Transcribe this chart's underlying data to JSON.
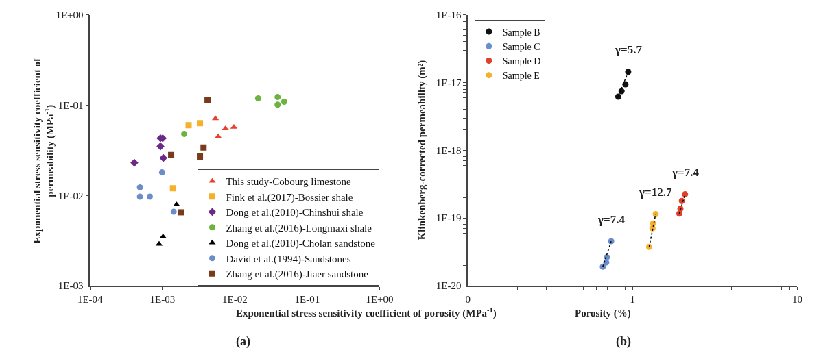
{
  "chart_data": [
    {
      "type": "scatter",
      "title": "(a)",
      "xlabel": "Exponential stress sensitivity coefficient of porosity (MPa$^{-1}$)",
      "ylabel": "Exponential stress sensitivity coefficient of permeability (MPa$^{-1}$)",
      "log": "xy",
      "legend": "bottom right",
      "xlim": [
        0.0001,
        1
      ],
      "xticks": [
        {
          "value": 0.0001,
          "label": "1E-04"
        },
        {
          "value": 0.001,
          "label": "1E-03"
        },
        {
          "value": 0.01,
          "label": "1E-02"
        },
        {
          "value": 0.1,
          "label": "1E-01"
        },
        {
          "value": 1,
          "label": "1E+00"
        }
      ],
      "ylim": [
        0.001,
        1
      ],
      "yticks": [
        {
          "value": 0.001,
          "label": "1E-03"
        },
        {
          "value": 0.01,
          "label": "1E-02"
        },
        {
          "value": 0.1,
          "label": "1E-01"
        },
        {
          "value": 1,
          "label": "1E+00"
        }
      ],
      "series": [
        {
          "name": "This study-Cobourg limestone",
          "color": "#e8402a",
          "marker": "triangle",
          "x": [
            0.0054,
            0.0074,
            0.0097,
            0.0059
          ],
          "values": [
            0.071,
            0.055,
            0.057,
            0.045
          ]
        },
        {
          "name": "Fink et al.(2017)-Bossier shale",
          "color": "#f5b12b",
          "marker": "square",
          "x": [
            0.0023,
            0.0033,
            0.0014
          ],
          "values": [
            0.06,
            0.063,
            0.012
          ]
        },
        {
          "name": "Dong et al.(2010)-Chinshui shale",
          "color": "#6a2a86",
          "marker": "diamond",
          "x": [
            0.00094,
            0.00101,
            0.00094,
            0.00103,
            0.00041
          ],
          "values": [
            0.043,
            0.043,
            0.035,
            0.026,
            0.023
          ]
        },
        {
          "name": "Zhang et al.(2016)-Longmaxi shale",
          "color": "#6db33f",
          "marker": "circle",
          "x": [
            0.021,
            0.039,
            0.048,
            0.039,
            0.002
          ],
          "values": [
            0.119,
            0.123,
            0.109,
            0.101,
            0.048
          ]
        },
        {
          "name": "Dong et al.(2010)-Cholan sandstone",
          "color": "#000000",
          "marker": "triangle",
          "x": [
            0.00157,
            0.00102,
            0.0009
          ],
          "values": [
            0.0079,
            0.0035,
            0.0029
          ]
        },
        {
          "name": "David et al.(1994)-Sandstones",
          "color": "#6a8fc8",
          "marker": "circle",
          "x": [
            0.00099,
            0.00049,
            0.00049,
            0.00067,
            0.00143
          ],
          "values": [
            0.018,
            0.0123,
            0.0097,
            0.0097,
            0.0066
          ]
        },
        {
          "name": "Zhang et al.(2016)-Jiaer sandstone",
          "color": "#7a3a1c",
          "marker": "square",
          "x": [
            0.0042,
            0.0037,
            0.0033,
            0.00132,
            0.00179
          ],
          "values": [
            0.113,
            0.034,
            0.027,
            0.028,
            0.0065
          ]
        }
      ]
    },
    {
      "type": "scatter",
      "title": "(b)",
      "xlabel": "Porosity (%)",
      "ylabel": "Klinkenberg-corrected permeability (m²)",
      "log": "xy",
      "legend": "top left",
      "xlim": [
        0.1,
        10
      ],
      "xticks": [
        {
          "value": 0.1,
          "label": "0"
        },
        {
          "value": 0.2,
          "label": null
        },
        {
          "value": 0.3,
          "label": null
        },
        {
          "value": 0.4,
          "label": null
        },
        {
          "value": 0.5,
          "label": null
        },
        {
          "value": 0.6,
          "label": null
        },
        {
          "value": 0.7,
          "label": null
        },
        {
          "value": 0.8,
          "label": null
        },
        {
          "value": 0.9,
          "label": null
        },
        1,
        {
          "value": 2,
          "label": null
        },
        {
          "value": 3,
          "label": null
        },
        {
          "value": 4,
          "label": null
        },
        {
          "value": 5,
          "label": null
        },
        {
          "value": 6,
          "label": null
        },
        {
          "value": 7,
          "label": null
        },
        {
          "value": 8,
          "label": null
        },
        {
          "value": 9,
          "label": null
        },
        10
      ],
      "ylim": [
        1e-20,
        1e-16
      ],
      "yticks": [
        {
          "value": 1e-20,
          "label": "1E-20"
        },
        {
          "value": 2e-20,
          "label": null
        },
        {
          "value": 3e-20,
          "label": null
        },
        {
          "value": 4e-20,
          "label": null
        },
        {
          "value": 5e-20,
          "label": null
        },
        {
          "value": 6e-20,
          "label": null
        },
        {
          "value": 7e-20,
          "label": null
        },
        {
          "value": 8e-20,
          "label": null
        },
        {
          "value": 9e-20,
          "label": null
        },
        {
          "value": 1e-19,
          "label": "1E-19"
        },
        {
          "value": 2e-19,
          "label": null
        },
        {
          "value": 3e-19,
          "label": null
        },
        {
          "value": 4e-19,
          "label": null
        },
        {
          "value": 5e-19,
          "label": null
        },
        {
          "value": 6e-19,
          "label": null
        },
        {
          "value": 7e-19,
          "label": null
        },
        {
          "value": 8e-19,
          "label": null
        },
        {
          "value": 9e-19,
          "label": null
        },
        {
          "value": 1e-18,
          "label": "1E-18"
        },
        {
          "value": 2e-18,
          "label": null
        },
        {
          "value": 3e-18,
          "label": null
        },
        {
          "value": 4e-18,
          "label": null
        },
        {
          "value": 5e-18,
          "label": null
        },
        {
          "value": 6e-18,
          "label": null
        },
        {
          "value": 7e-18,
          "label": null
        },
        {
          "value": 8e-18,
          "label": null
        },
        {
          "value": 9e-18,
          "label": null
        },
        {
          "value": 1e-17,
          "label": "1E-17"
        },
        {
          "value": 2e-17,
          "label": null
        },
        {
          "value": 3e-17,
          "label": null
        },
        {
          "value": 4e-17,
          "label": null
        },
        {
          "value": 5e-17,
          "label": null
        },
        {
          "value": 6e-17,
          "label": null
        },
        {
          "value": 7e-17,
          "label": null
        },
        {
          "value": 8e-17,
          "label": null
        },
        {
          "value": 9e-17,
          "label": null
        },
        {
          "value": 1e-16,
          "label": "1E-16"
        }
      ],
      "annotations": [
        "γ=5.7",
        "γ=7.4",
        "γ=7.4",
        "γ=12.7"
      ],
      "series": [
        {
          "name": "Sample B",
          "color": "#111111",
          "marker": "circle",
          "x": [
            0.94,
            0.905,
            0.857,
            0.818
          ],
          "values": [
            1.44e-17,
            9.4e-18,
            7.45e-18,
            6.2e-18
          ]
        },
        {
          "name": "Sample C",
          "color": "#6a8fc8",
          "marker": "circle",
          "x": [
            0.741,
            0.698,
            0.692,
            0.659
          ],
          "values": [
            4.55e-20,
            2.64e-20,
            2.21e-20,
            1.91e-20
          ]
        },
        {
          "name": "Sample D",
          "color": "#e0402a",
          "marker": "circle",
          "x": [
            2.08,
            1.99,
            1.95,
            1.92
          ],
          "values": [
            2.24e-19,
            1.79e-19,
            1.37e-19,
            1.16e-19
          ]
        },
        {
          "name": "Sample E",
          "color": "#f5b030",
          "marker": "circle",
          "x": [
            1.38,
            1.33,
            1.32,
            1.26
          ],
          "values": [
            1.14e-19,
            8.3e-20,
            7.05e-20,
            3.75e-20
          ]
        },
        {
          "type": "line",
          "color": "#000000",
          "marker": "none",
          "line_style": "dotted",
          "x": [
            0.818,
            0.94
          ],
          "values": [
            6.2e-18,
            1.44e-17
          ]
        },
        {
          "type": "line",
          "color": "#000000",
          "marker": "none",
          "line_style": "dotted",
          "x": [
            0.659,
            0.741
          ],
          "values": [
            1.91e-20,
            4.55e-20
          ]
        },
        {
          "type": "line",
          "color": "#000000",
          "marker": "none",
          "line_style": "dotted",
          "x": [
            1.92,
            2.08
          ],
          "values": [
            1.16e-19,
            2.24e-19
          ]
        },
        {
          "type": "line",
          "color": "#000000",
          "marker": "none",
          "line_style": "dotted",
          "x": [
            1.26,
            1.38
          ],
          "values": [
            3.75e-20,
            1.14e-19
          ]
        }
      ]
    }
  ]
}
